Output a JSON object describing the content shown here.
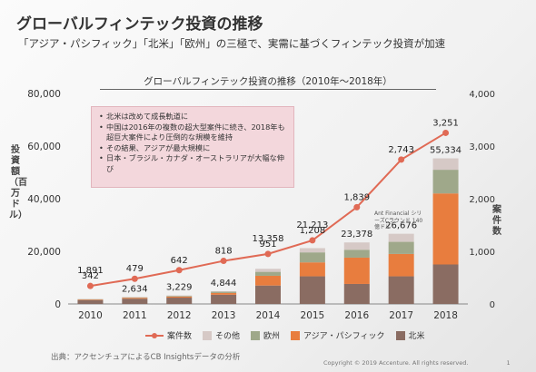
{
  "slide": {
    "title": "グローバルフィンテック投資の推移",
    "subtitle": "「アジア・パシフィック」「北米」「欧州」の三極で、実需に基づくフィンテック投資が加速",
    "callout": [
      "北米は改めて成長軌道に",
      "中国は2016年の複数の超大型案件に続き、2018年も超巨大案件により圧倒的な規模を維持",
      "その結果、アジアが最大規模に",
      "日本・ブラジル・カナダ・オーストラリアが大幅な伸び"
    ],
    "annotation": "Ant Financial シリーズCラウンド 140億ドル",
    "source": "出典：アクセンチュアによるCB Insightsデータの分析",
    "copyright": "Copyright © 2019 Accenture. All rights reserved.",
    "page_number": "1"
  },
  "chart_data": {
    "type": "bar",
    "title": "グローバルフィンテック投資の推移（2010年〜2018年）",
    "ylabel": "投資額（百万ドル）",
    "y2label": "案件数",
    "categories": [
      "2010",
      "2011",
      "2012",
      "2013",
      "2014",
      "2015",
      "2016",
      "2017",
      "2018"
    ],
    "ylim": [
      0,
      80000
    ],
    "y_ticks": [
      "0",
      "20,000",
      "40,000",
      "60,000",
      "80,000"
    ],
    "y2lim": [
      0,
      4000
    ],
    "y2_ticks": [
      "0",
      "1,000",
      "2,000",
      "3,000",
      "4,000"
    ],
    "stacked_series": [
      {
        "name": "北米",
        "color": "#8a6c62",
        "values": [
          1500,
          2000,
          2400,
          3500,
          7000,
          10500,
          7600,
          10500,
          15000
        ]
      },
      {
        "name": "アジア・パシフィック",
        "color": "#e87d3e",
        "values": [
          200,
          350,
          400,
          650,
          3700,
          5300,
          10000,
          8500,
          27000
        ]
      },
      {
        "name": "欧州",
        "color": "#9fa88a",
        "values": [
          120,
          170,
          260,
          490,
          1500,
          3800,
          3000,
          4600,
          9000
        ]
      },
      {
        "name": "その他",
        "color": "#d6c9c6",
        "values": [
          71,
          114,
          169,
          204,
          1158,
          1613,
          2778,
          3076,
          4334
        ]
      }
    ],
    "totals": [
      1891,
      2634,
      3229,
      4844,
      13358,
      21213,
      23378,
      26676,
      55334
    ],
    "total_labels": [
      "1,891",
      "2,634",
      "3,229",
      "4,844",
      "13,358",
      "21,213",
      "23,378",
      "26,676",
      "55,334"
    ],
    "line_series": {
      "name": "案件数",
      "color": "#e06a55",
      "values": [
        342,
        479,
        642,
        818,
        951,
        1208,
        1839,
        2743,
        3251
      ],
      "labels": [
        "342",
        "479",
        "642",
        "818",
        "951",
        "1,208",
        "1,839",
        "2,743",
        "3,251"
      ]
    },
    "legend_order": [
      "案件数",
      "その他",
      "欧州",
      "アジア・パシフィック",
      "北米"
    ],
    "legend_placement": "bottom"
  }
}
